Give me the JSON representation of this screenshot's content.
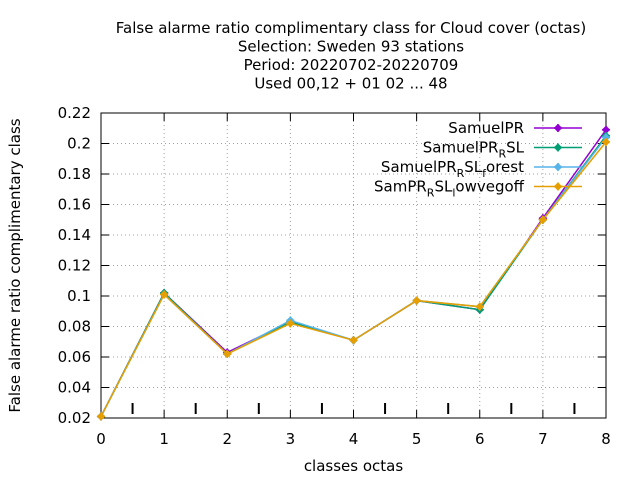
{
  "chart_data": {
    "type": "line",
    "title_lines": [
      "False alarme ratio complimentary class  for Cloud cover (octas)",
      "Selection: Sweden     93 stations",
      "Period: 20220702-20220709",
      "Used  00,12  + 01 02 ... 48"
    ],
    "xlabel": "classes octas",
    "ylabel": "False alarme ratio complimentary class",
    "xlim": [
      0,
      8
    ],
    "ylim": [
      0.02,
      0.22
    ],
    "x_ticks": [
      "0",
      "1",
      "2",
      "3",
      "4",
      "5",
      "6",
      "7",
      "8"
    ],
    "y_ticks": [
      "0.02",
      "0.04",
      "0.06",
      "0.08",
      "0.1",
      "0.12",
      "0.14",
      "0.16",
      "0.18",
      "0.2",
      "0.22"
    ],
    "grid": true,
    "legend_position": "top-right",
    "x": [
      0,
      1,
      2,
      3,
      4,
      5,
      6,
      7,
      8
    ],
    "series": [
      {
        "name": "SamuelPR",
        "legend_main": "SamuelPR",
        "legend_segments": [],
        "color": "#9400d3",
        "values": [
          0.021,
          0.102,
          0.063,
          0.083,
          0.071,
          0.097,
          0.091,
          0.151,
          0.209
        ]
      },
      {
        "name": "SamuelPR_RSL",
        "legend_main": "SamuelPR",
        "legend_segments": [
          [
            "R",
            "SL"
          ]
        ],
        "color": "#009e73",
        "values": [
          0.021,
          0.102,
          0.062,
          0.083,
          0.071,
          0.097,
          0.091,
          0.15,
          0.205
        ]
      },
      {
        "name": "SamuelPR_RSL_forest",
        "legend_main": "SamuelPR",
        "legend_segments": [
          [
            "R",
            "SL"
          ],
          [
            "f",
            "orest"
          ]
        ],
        "color": "#56b4e9",
        "values": [
          0.021,
          0.101,
          0.062,
          0.084,
          0.071,
          0.097,
          0.093,
          0.15,
          0.204
        ]
      },
      {
        "name": "SamPR_RSL_lowvegoff",
        "legend_main": "SamPR",
        "legend_segments": [
          [
            "R",
            "SL"
          ],
          [
            "l",
            "owvegoff"
          ]
        ],
        "color": "#e69f00",
        "values": [
          0.021,
          0.101,
          0.062,
          0.082,
          0.071,
          0.097,
          0.093,
          0.15,
          0.201
        ]
      }
    ]
  }
}
